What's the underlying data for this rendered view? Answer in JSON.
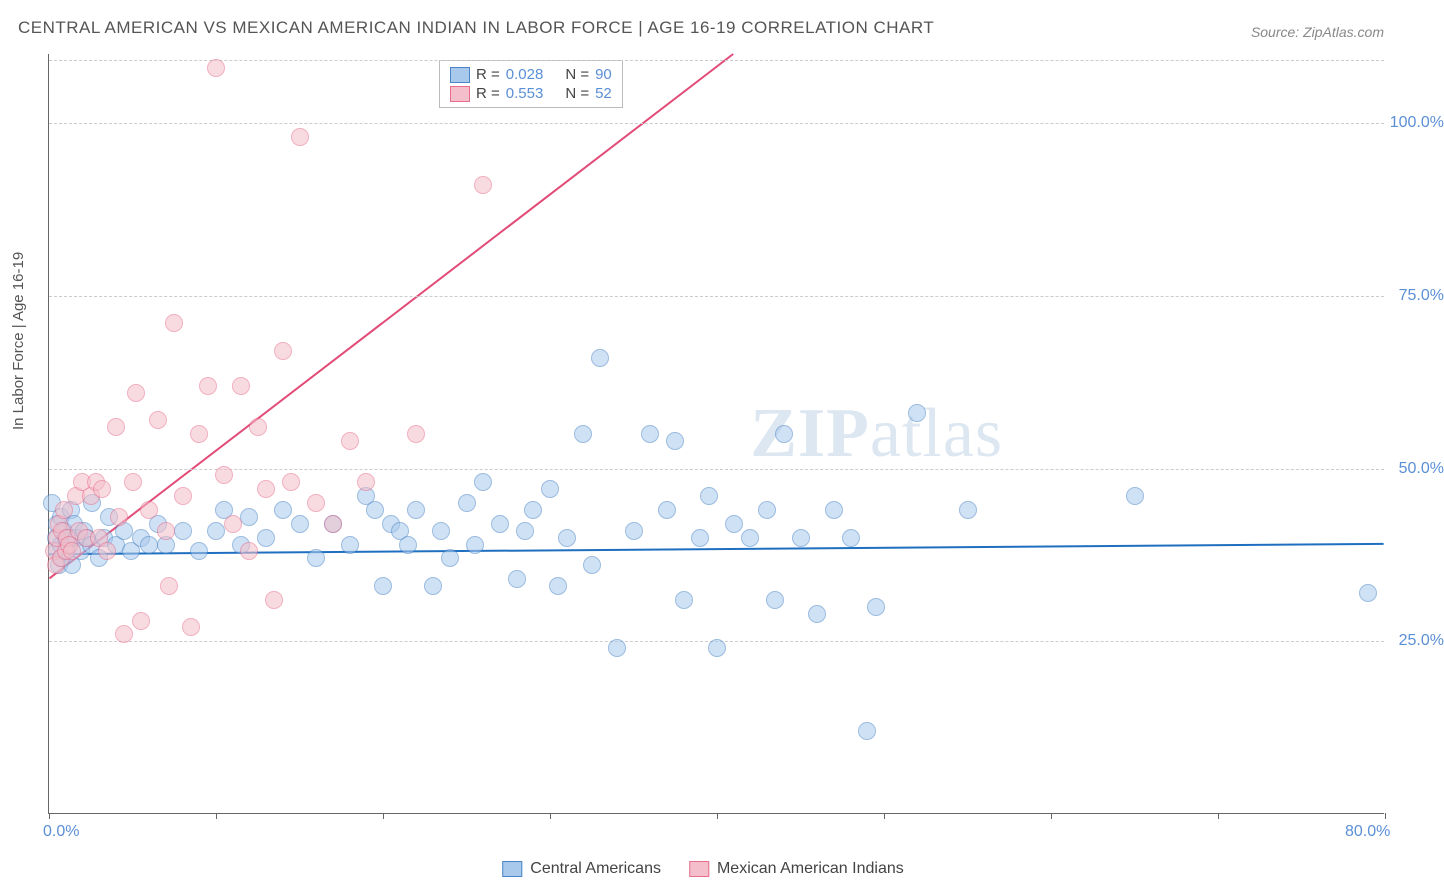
{
  "title": "CENTRAL AMERICAN VS MEXICAN AMERICAN INDIAN IN LABOR FORCE | AGE 16-19 CORRELATION CHART",
  "source": "Source: ZipAtlas.com",
  "ylabel": "In Labor Force | Age 16-19",
  "watermark": "ZIPatlas",
  "chart": {
    "type": "scatter-correlation",
    "xlim": [
      0,
      80
    ],
    "ylim": [
      0,
      110
    ],
    "x_ticks_minor_count": 8,
    "x_axis_labels": [
      {
        "v": 0,
        "t": "0.0%"
      },
      {
        "v": 80,
        "t": "80.0%"
      }
    ],
    "y_axis_labels": [
      {
        "v": 25,
        "t": "25.0%"
      },
      {
        "v": 50,
        "t": "50.0%"
      },
      {
        "v": 75,
        "t": "75.0%"
      },
      {
        "v": 100,
        "t": "100.0%"
      }
    ],
    "grid_color": "#cccccc",
    "background_color": "#ffffff",
    "marker_radius": 9,
    "marker_opacity": 0.55,
    "marker_stroke_width": 1,
    "line_width": 2,
    "series": [
      {
        "name": "Central Americans",
        "fill": "#a9c9ec",
        "stroke": "#4a86c7",
        "line_color": "#1f6fc0",
        "r": 0.028,
        "n": 90,
        "trend": {
          "x1": 0,
          "y1": 37.5,
          "x2": 80,
          "y2": 39.0
        },
        "points": [
          [
            0.2,
            45
          ],
          [
            0.4,
            40
          ],
          [
            0.5,
            38
          ],
          [
            0.5,
            42
          ],
          [
            0.6,
            36
          ],
          [
            0.7,
            39
          ],
          [
            0.7,
            43
          ],
          [
            0.8,
            37
          ],
          [
            0.9,
            41
          ],
          [
            1.0,
            40
          ],
          [
            1.1,
            38
          ],
          [
            1.2,
            40
          ],
          [
            1.3,
            44
          ],
          [
            1.4,
            36
          ],
          [
            1.5,
            42
          ],
          [
            1.6,
            40
          ],
          [
            1.9,
            38
          ],
          [
            2.1,
            41
          ],
          [
            2.3,
            40
          ],
          [
            2.5,
            39
          ],
          [
            2.6,
            45
          ],
          [
            3.0,
            37
          ],
          [
            3.3,
            40
          ],
          [
            3.6,
            43
          ],
          [
            4.0,
            39
          ],
          [
            4.5,
            41
          ],
          [
            4.9,
            38
          ],
          [
            5.5,
            40
          ],
          [
            6.0,
            39
          ],
          [
            6.5,
            42
          ],
          [
            7.0,
            39
          ],
          [
            8.0,
            41
          ],
          [
            9.0,
            38
          ],
          [
            10.0,
            41
          ],
          [
            10.5,
            44
          ],
          [
            11.5,
            39
          ],
          [
            12.0,
            43
          ],
          [
            13.0,
            40
          ],
          [
            14.0,
            44
          ],
          [
            15.0,
            42
          ],
          [
            16.0,
            37
          ],
          [
            17.0,
            42
          ],
          [
            18.0,
            39
          ],
          [
            19.0,
            46
          ],
          [
            19.5,
            44
          ],
          [
            20.0,
            33
          ],
          [
            20.5,
            42
          ],
          [
            21.0,
            41
          ],
          [
            21.5,
            39
          ],
          [
            22.0,
            44
          ],
          [
            23.0,
            33
          ],
          [
            23.5,
            41
          ],
          [
            24.0,
            37
          ],
          [
            25.0,
            45
          ],
          [
            25.5,
            39
          ],
          [
            26.0,
            48
          ],
          [
            27.0,
            42
          ],
          [
            28.0,
            34
          ],
          [
            28.5,
            41
          ],
          [
            29.0,
            44
          ],
          [
            30.0,
            47
          ],
          [
            30.5,
            33
          ],
          [
            31.0,
            40
          ],
          [
            32.0,
            55
          ],
          [
            32.5,
            36
          ],
          [
            33.0,
            66
          ],
          [
            34.0,
            24
          ],
          [
            35.0,
            41
          ],
          [
            36.0,
            55
          ],
          [
            37.0,
            44
          ],
          [
            37.5,
            54
          ],
          [
            38.0,
            31
          ],
          [
            39.0,
            40
          ],
          [
            39.5,
            46
          ],
          [
            40.0,
            24
          ],
          [
            41.0,
            42
          ],
          [
            42.0,
            40
          ],
          [
            43.0,
            44
          ],
          [
            43.5,
            31
          ],
          [
            44.0,
            55
          ],
          [
            45.0,
            40
          ],
          [
            46.0,
            29
          ],
          [
            47.0,
            44
          ],
          [
            48.0,
            40
          ],
          [
            49.0,
            12
          ],
          [
            49.5,
            30
          ],
          [
            52.0,
            58
          ],
          [
            55.0,
            44
          ],
          [
            65.0,
            46
          ],
          [
            79.0,
            32
          ]
        ]
      },
      {
        "name": "Mexican American Indians",
        "fill": "#f4bfca",
        "stroke": "#e76f8d",
        "line_color": "#e24b77",
        "r": 0.553,
        "n": 52,
        "trend": {
          "x1": 0,
          "y1": 34,
          "x2": 41,
          "y2": 110
        },
        "points": [
          [
            0.3,
            38
          ],
          [
            0.4,
            36
          ],
          [
            0.5,
            40
          ],
          [
            0.6,
            42
          ],
          [
            0.7,
            37
          ],
          [
            0.8,
            41
          ],
          [
            0.9,
            44
          ],
          [
            1.0,
            38
          ],
          [
            1.1,
            40
          ],
          [
            1.2,
            39
          ],
          [
            1.4,
            38
          ],
          [
            1.6,
            46
          ],
          [
            1.8,
            41
          ],
          [
            2.0,
            48
          ],
          [
            2.2,
            40
          ],
          [
            2.5,
            46
          ],
          [
            2.8,
            48
          ],
          [
            3.0,
            40
          ],
          [
            3.2,
            47
          ],
          [
            3.5,
            38
          ],
          [
            4.0,
            56
          ],
          [
            4.2,
            43
          ],
          [
            4.5,
            26
          ],
          [
            5.0,
            48
          ],
          [
            5.2,
            61
          ],
          [
            5.5,
            28
          ],
          [
            6.0,
            44
          ],
          [
            6.5,
            57
          ],
          [
            7.0,
            41
          ],
          [
            7.5,
            71
          ],
          [
            8.0,
            46
          ],
          [
            8.5,
            27
          ],
          [
            9.0,
            55
          ],
          [
            9.5,
            62
          ],
          [
            10.0,
            108
          ],
          [
            10.5,
            49
          ],
          [
            11.0,
            42
          ],
          [
            11.5,
            62
          ],
          [
            12.0,
            38
          ],
          [
            12.5,
            56
          ],
          [
            13.0,
            47
          ],
          [
            13.5,
            31
          ],
          [
            14.0,
            67
          ],
          [
            15.0,
            98
          ],
          [
            16.0,
            45
          ],
          [
            17.0,
            42
          ],
          [
            18.0,
            54
          ],
          [
            19.0,
            48
          ],
          [
            22.0,
            55
          ],
          [
            26.0,
            91
          ],
          [
            14.5,
            48
          ],
          [
            7.2,
            33
          ]
        ]
      }
    ]
  },
  "legend_top": {
    "rows": [
      {
        "color_idx": 0,
        "r_label": "R =",
        "n_label": "N ="
      },
      {
        "color_idx": 1,
        "r_label": "R =",
        "n_label": "N ="
      }
    ]
  },
  "colors": {
    "text": "#555555",
    "axis_value": "#5b8fd6",
    "grid": "#cccccc"
  }
}
